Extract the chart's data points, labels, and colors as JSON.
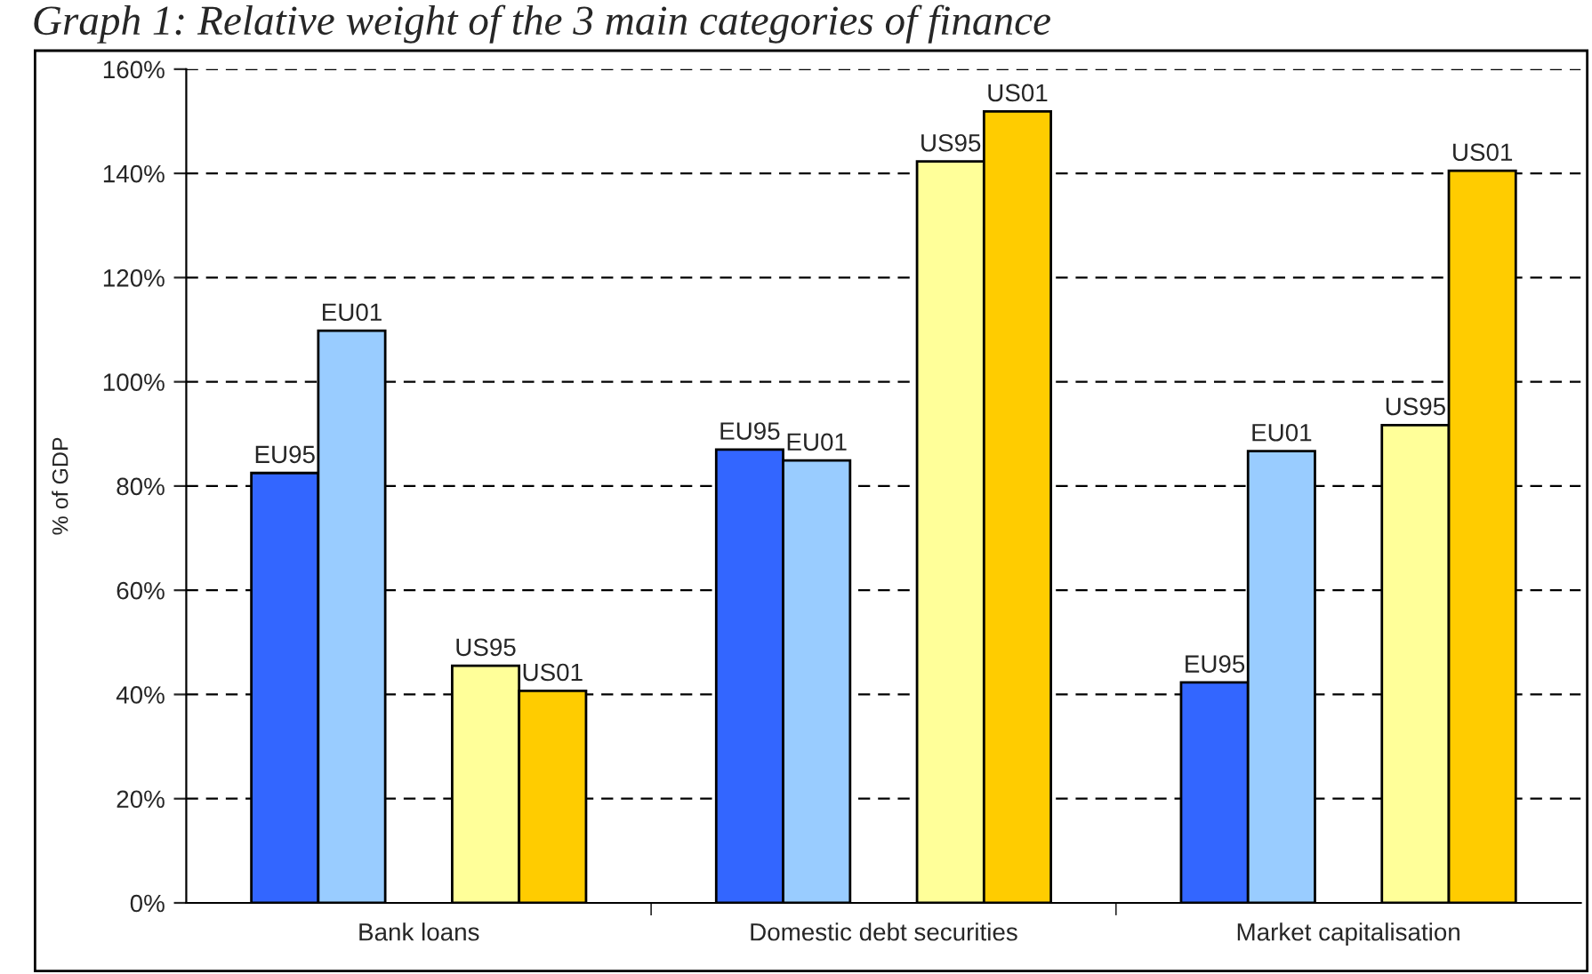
{
  "chart_data": {
    "type": "bar",
    "title": "Graph 1: Relative weight of the 3 main categories of finance",
    "ylabel": "% of GDP",
    "categories": [
      "Bank loans",
      "Domestic debt securities",
      "Market capitalisation"
    ],
    "series": [
      {
        "name": "EU95",
        "color": "#3366ff",
        "values": [
          82.5,
          87,
          42.3
        ]
      },
      {
        "name": "EU01",
        "color": "#99ccff",
        "values": [
          109.8,
          84.9,
          86.7
        ]
      },
      {
        "name": "US95",
        "color": "#ffff99",
        "values": [
          45.5,
          142.3,
          91.7
        ]
      },
      {
        "name": "US01",
        "color": "#ffcc00",
        "values": [
          40.7,
          151.9,
          140.5
        ]
      }
    ],
    "ylim": [
      0,
      160
    ],
    "yticks": [
      {
        "value": 0,
        "label": "0%"
      },
      {
        "value": 20,
        "label": "20%"
      },
      {
        "value": 40,
        "label": "40%"
      },
      {
        "value": 60,
        "label": "60%"
      },
      {
        "value": 80,
        "label": "80%"
      },
      {
        "value": 100,
        "label": "100%"
      },
      {
        "value": 120,
        "label": "120%"
      },
      {
        "value": 140,
        "label": "140%"
      },
      {
        "value": 160,
        "label": "160%"
      }
    ],
    "grid": "y",
    "legend": false,
    "line_style": "dashed"
  }
}
